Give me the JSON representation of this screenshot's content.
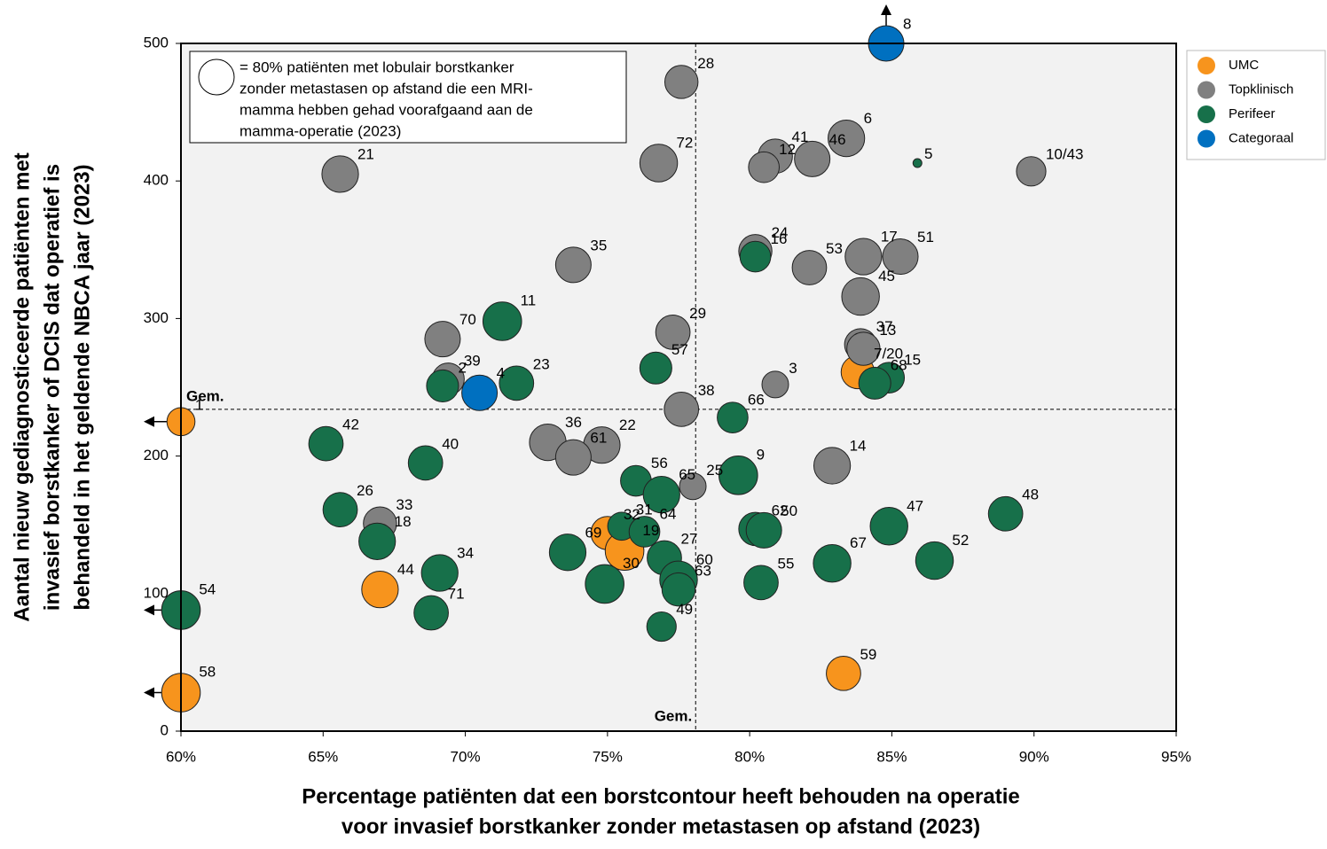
{
  "chart_data": {
    "type": "bubble",
    "xlabel": [
      "Percentage patiënten dat een borstcontour heeft behouden na operatie",
      "voor invasief borstkanker zonder metastasen op afstand (2023)"
    ],
    "ylabel": [
      "Aantal nieuw gediagnosticeerde patiënten met",
      "invasief borstkanker of DCIS dat operatief is",
      "behandeld in het geldende NBCA jaar (2023)"
    ],
    "xlim": [
      60,
      95
    ],
    "xticks": [
      {
        "value": 60,
        "label": "60%"
      },
      {
        "value": 65,
        "label": "65%"
      },
      {
        "value": 70,
        "label": "70%"
      },
      {
        "value": 75,
        "label": "75%"
      },
      {
        "value": 80,
        "label": "80%"
      },
      {
        "value": 85,
        "label": "85%"
      },
      {
        "value": 90,
        "label": "90%"
      },
      {
        "value": 95,
        "label": "95%"
      }
    ],
    "ylim": [
      0,
      500
    ],
    "yticks": [
      0,
      100,
      200,
      300,
      400,
      500
    ],
    "avg_x": 78.1,
    "avg_y": 234,
    "avg_label": "Gem.",
    "size_legend": {
      "value": 80,
      "lines": [
        "= 80% patiënten met lobulair borstkanker",
        "zonder metastasen op afstand die een MRI-",
        "mamma hebben gehad voorafgaand aan de",
        "mamma-operatie (2023)"
      ]
    },
    "series": [
      {
        "name": "UMC",
        "color": "#f7941d",
        "labels": [
          "1",
          "32",
          "19",
          "44",
          "7/20",
          "58",
          "59"
        ],
        "x": [
          60,
          75.0,
          75.6,
          67.0,
          83.8,
          60,
          83.3
        ],
        "values": [
          225,
          144,
          131,
          103,
          261,
          28,
          42
        ],
        "sizes": [
          50,
          70,
          95,
          85,
          70,
          95,
          75
        ],
        "off_scale": [
          "left",
          null,
          null,
          null,
          null,
          "left",
          null
        ]
      },
      {
        "name": "Topklinisch",
        "color": "#808080",
        "labels": [
          "28",
          "72",
          "21",
          "41",
          "12",
          "46",
          "6",
          "10/43",
          "35",
          "24",
          "53",
          "17",
          "51",
          "45",
          "29",
          "70",
          "37",
          "13",
          "39",
          "3",
          "38",
          "36",
          "22",
          "61",
          "25",
          "14",
          "33"
        ],
        "x": [
          77.6,
          76.8,
          65.6,
          80.9,
          80.5,
          82.2,
          83.4,
          89.9,
          73.8,
          80.2,
          82.1,
          84.0,
          85.3,
          83.9,
          77.3,
          69.2,
          83.9,
          84.0,
          69.4,
          80.9,
          77.6,
          72.9,
          74.8,
          73.8,
          78.0,
          82.9,
          67.0
        ],
        "values": [
          472,
          413,
          405,
          418,
          410,
          416,
          431,
          407,
          339,
          349,
          337,
          345,
          345,
          316,
          290,
          285,
          281,
          278,
          256,
          252,
          234,
          210,
          208,
          199,
          178,
          193,
          151
        ],
        "sizes": [
          70,
          90,
          85,
          75,
          60,
          80,
          85,
          55,
          80,
          70,
          75,
          85,
          80,
          90,
          75,
          80,
          65,
          70,
          65,
          45,
          75,
          85,
          85,
          80,
          45,
          85,
          70
        ]
      },
      {
        "name": "Perifeer",
        "color": "#17704a",
        "labels": [
          "5",
          "16",
          "11",
          "23",
          "57",
          "2",
          "66",
          "42",
          "40",
          "9",
          "56",
          "65",
          "26",
          "18",
          "31",
          "64",
          "69",
          "62",
          "50",
          "47",
          "48",
          "34",
          "27",
          "60",
          "63",
          "30",
          "55",
          "67",
          "52",
          "15",
          "68",
          "54",
          "71",
          "49"
        ],
        "x": [
          85.9,
          80.2,
          71.3,
          71.8,
          76.7,
          69.2,
          79.4,
          65.1,
          68.6,
          79.6,
          76.0,
          76.9,
          65.6,
          66.9,
          75.5,
          76.3,
          73.6,
          80.2,
          80.5,
          84.9,
          89.0,
          69.1,
          77.0,
          77.5,
          77.5,
          74.9,
          80.4,
          82.9,
          86.5,
          84.9,
          84.4,
          60,
          68.8,
          76.9
        ],
        "values": [
          413,
          345,
          298,
          253,
          264,
          251,
          228,
          209,
          195,
          186,
          182,
          172,
          161,
          138,
          149,
          145,
          130,
          147,
          146,
          149,
          158,
          115,
          126,
          110,
          103,
          107,
          108,
          122,
          124,
          257,
          253,
          88,
          86,
          76
        ],
        "sizes": [
          5,
          60,
          95,
          75,
          65,
          65,
          60,
          75,
          75,
          95,
          60,
          85,
          75,
          85,
          50,
          60,
          85,
          70,
          80,
          90,
          75,
          85,
          75,
          90,
          70,
          95,
          75,
          90,
          90,
          60,
          65,
          95,
          75,
          55
        ],
        "off_scale": [
          null,
          null,
          null,
          null,
          null,
          null,
          null,
          null,
          null,
          null,
          null,
          null,
          null,
          null,
          null,
          null,
          null,
          null,
          null,
          null,
          null,
          null,
          null,
          null,
          null,
          null,
          null,
          null,
          null,
          null,
          null,
          "left",
          null,
          null
        ]
      },
      {
        "name": "Categoraal",
        "color": "#0070c0",
        "labels": [
          "8",
          "4"
        ],
        "x": [
          84.8,
          70.5
        ],
        "values": [
          500,
          246
        ],
        "sizes": [
          80,
          80
        ],
        "off_scale": [
          "up",
          null
        ]
      }
    ]
  }
}
